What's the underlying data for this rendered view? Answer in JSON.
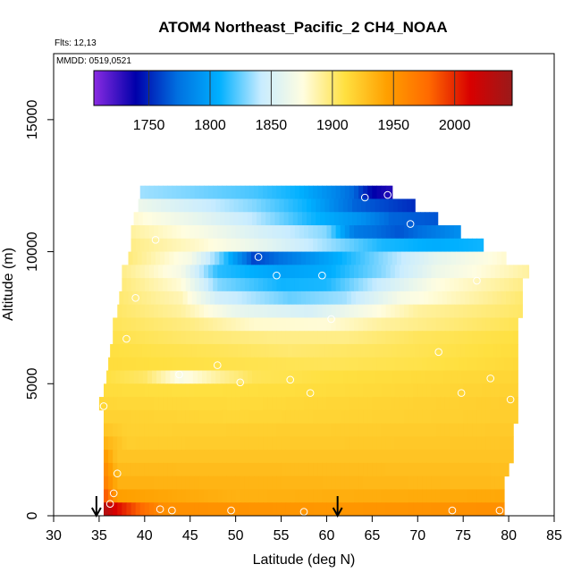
{
  "chart_data": {
    "type": "heatmap",
    "title": "ATOM4 Northeast_Pacific_2 CH4_NOAA",
    "flights_text": "Flts: 12,13",
    "mmdd_text": "MMDD: 0519,0521",
    "xlabel": "Latitude (deg N)",
    "ylabel": "Altitude (m)",
    "xlim": [
      30,
      85
    ],
    "ylim": [
      0,
      17500
    ],
    "x_ticks": [
      30,
      35,
      40,
      45,
      50,
      55,
      60,
      65,
      70,
      75,
      80,
      85
    ],
    "y_ticks": [
      0,
      5000,
      10000,
      15000
    ],
    "colorbar": {
      "range": [
        1705,
        2047
      ],
      "ticks": [
        1750,
        1800,
        1850,
        1900,
        1950,
        2000
      ],
      "colors": [
        "#8a2be2",
        "#0000aa",
        "#0070e0",
        "#00b0ff",
        "#c8ecff",
        "#fffde0",
        "#ffe040",
        "#ffa000",
        "#ff6a00",
        "#d80000",
        "#9a1a1a"
      ]
    },
    "rows": [
      {
        "y0": 12000,
        "y1": 12500,
        "x0": 39.5,
        "x1": 67.2,
        "k": [
          [
            39.5,
            1835
          ],
          [
            44,
            1830
          ],
          [
            52,
            1820
          ],
          [
            57,
            1808
          ],
          [
            61,
            1785
          ],
          [
            63,
            1770
          ],
          [
            65,
            1740
          ],
          [
            67.2,
            1730
          ]
        ]
      },
      {
        "y0": 11500,
        "y1": 12000,
        "x0": 39.3,
        "x1": 69.7,
        "k": [
          [
            39.3,
            1865
          ],
          [
            45,
            1848
          ],
          [
            52,
            1830
          ],
          [
            58,
            1808
          ],
          [
            63,
            1770
          ],
          [
            69.7,
            1752
          ]
        ]
      },
      {
        "y0": 11000,
        "y1": 11500,
        "x0": 38.8,
        "x1": 72.2,
        "k": [
          [
            38.8,
            1880
          ],
          [
            46,
            1860
          ],
          [
            52,
            1840
          ],
          [
            58,
            1812
          ],
          [
            64,
            1790
          ],
          [
            67,
            1770
          ],
          [
            72.2,
            1765
          ]
        ]
      },
      {
        "y0": 10500,
        "y1": 11000,
        "x0": 38.5,
        "x1": 74.7,
        "k": [
          [
            38.5,
            1890
          ],
          [
            46,
            1872
          ],
          [
            53,
            1850
          ],
          [
            60,
            1830
          ],
          [
            63,
            1780
          ],
          [
            68,
            1765
          ],
          [
            74.7,
            1790
          ]
        ]
      },
      {
        "y0": 10000,
        "y1": 10500,
        "x0": 38.5,
        "x1": 77.2,
        "k": [
          [
            38.5,
            1895
          ],
          [
            46,
            1880
          ],
          [
            53,
            1860
          ],
          [
            60,
            1835
          ],
          [
            66,
            1812
          ],
          [
            72,
            1806
          ],
          [
            77.2,
            1810
          ]
        ]
      },
      {
        "y0": 9500,
        "y1": 10000,
        "x0": 38.2,
        "x1": 79.7,
        "k": [
          [
            38.2,
            1898
          ],
          [
            45,
            1870
          ],
          [
            48,
            1830
          ],
          [
            52,
            1760
          ],
          [
            55,
            1775
          ],
          [
            60,
            1800
          ],
          [
            66,
            1830
          ],
          [
            72,
            1860
          ],
          [
            79.7,
            1880
          ]
        ]
      },
      {
        "y0": 9000,
        "y1": 9500,
        "x0": 37.5,
        "x1": 82.2,
        "k": [
          [
            37.5,
            1895
          ],
          [
            44,
            1870
          ],
          [
            48,
            1815
          ],
          [
            55,
            1800
          ],
          [
            60,
            1805
          ],
          [
            66,
            1830
          ],
          [
            72,
            1865
          ],
          [
            82.2,
            1890
          ]
        ]
      },
      {
        "y0": 8500,
        "y1": 9000,
        "x0": 37.5,
        "x1": 81.5,
        "k": [
          [
            37.5,
            1898
          ],
          [
            44,
            1878
          ],
          [
            48,
            1830
          ],
          [
            55,
            1810
          ],
          [
            60,
            1812
          ],
          [
            66,
            1845
          ],
          [
            72,
            1875
          ],
          [
            81.5,
            1895
          ]
        ]
      },
      {
        "y0": 8000,
        "y1": 8500,
        "x0": 37.2,
        "x1": 81.5,
        "k": [
          [
            37.2,
            1900
          ],
          [
            44,
            1885
          ],
          [
            48,
            1848
          ],
          [
            56,
            1825
          ],
          [
            62,
            1835
          ],
          [
            68,
            1870
          ],
          [
            81.5,
            1900
          ]
        ]
      },
      {
        "y0": 7500,
        "y1": 8000,
        "x0": 37,
        "x1": 81.5,
        "k": [
          [
            37,
            1902
          ],
          [
            44,
            1890
          ],
          [
            50,
            1862
          ],
          [
            58,
            1850
          ],
          [
            64,
            1870
          ],
          [
            70,
            1890
          ],
          [
            81.5,
            1902
          ]
        ]
      },
      {
        "y0": 7000,
        "y1": 7500,
        "x0": 36.5,
        "x1": 81,
        "k": [
          [
            36.5,
            1905
          ],
          [
            45,
            1896
          ],
          [
            52,
            1880
          ],
          [
            60,
            1878
          ],
          [
            66,
            1890
          ],
          [
            81,
            1906
          ]
        ]
      },
      {
        "y0": 6500,
        "y1": 7000,
        "x0": 36.5,
        "x1": 81,
        "k": [
          [
            36.5,
            1908
          ],
          [
            46,
            1900
          ],
          [
            54,
            1895
          ],
          [
            62,
            1895
          ],
          [
            70,
            1904
          ],
          [
            81,
            1910
          ]
        ]
      },
      {
        "y0": 6000,
        "y1": 6500,
        "x0": 36.2,
        "x1": 81,
        "k": [
          [
            36.2,
            1910
          ],
          [
            48,
            1905
          ],
          [
            56,
            1900
          ],
          [
            66,
            1904
          ],
          [
            81,
            1912
          ]
        ]
      },
      {
        "y0": 5500,
        "y1": 6000,
        "x0": 36,
        "x1": 81,
        "k": [
          [
            36,
            1912
          ],
          [
            48,
            1908
          ],
          [
            60,
            1905
          ],
          [
            70,
            1908
          ],
          [
            81,
            1914
          ]
        ]
      },
      {
        "y0": 5000,
        "y1": 5500,
        "x0": 35.8,
        "x1": 81,
        "k": [
          [
            35.8,
            1910
          ],
          [
            40,
            1902
          ],
          [
            44,
            1872
          ],
          [
            48,
            1890
          ],
          [
            52,
            1905
          ],
          [
            60,
            1910
          ],
          [
            81,
            1916
          ]
        ]
      },
      {
        "y0": 4500,
        "y1": 5000,
        "x0": 35.5,
        "x1": 81,
        "k": [
          [
            35.5,
            1912
          ],
          [
            45,
            1910
          ],
          [
            60,
            1912
          ],
          [
            81,
            1918
          ]
        ]
      },
      {
        "y0": 4000,
        "y1": 4500,
        "x0": 35,
        "x1": 81,
        "k": [
          [
            35,
            1915
          ],
          [
            50,
            1913
          ],
          [
            81,
            1920
          ]
        ]
      },
      {
        "y0": 3500,
        "y1": 4000,
        "x0": 35.5,
        "x1": 81,
        "k": [
          [
            35.5,
            1918
          ],
          [
            50,
            1915
          ],
          [
            81,
            1920
          ]
        ]
      },
      {
        "y0": 3000,
        "y1": 3500,
        "x0": 35.5,
        "x1": 80.5,
        "k": [
          [
            35.5,
            1925
          ],
          [
            38,
            1918
          ],
          [
            81,
            1922
          ]
        ]
      },
      {
        "y0": 2500,
        "y1": 3000,
        "x0": 35.5,
        "x1": 80.5,
        "k": [
          [
            35.5,
            1935
          ],
          [
            38,
            1920
          ],
          [
            81,
            1924
          ]
        ]
      },
      {
        "y0": 2000,
        "y1": 2500,
        "x0": 35.5,
        "x1": 80.5,
        "k": [
          [
            35.5,
            1950
          ],
          [
            37,
            1925
          ],
          [
            81,
            1925
          ]
        ]
      },
      {
        "y0": 1500,
        "y1": 2000,
        "x0": 35.5,
        "x1": 80,
        "k": [
          [
            35.5,
            1960
          ],
          [
            37,
            1930
          ],
          [
            80,
            1928
          ]
        ]
      },
      {
        "y0": 1000,
        "y1": 1500,
        "x0": 35.5,
        "x1": 79.5,
        "k": [
          [
            35.5,
            1968
          ],
          [
            37,
            1935
          ],
          [
            80,
            1930
          ]
        ]
      },
      {
        "y0": 500,
        "y1": 1000,
        "x0": 35.5,
        "x1": 79.5,
        "k": [
          [
            35.5,
            1990
          ],
          [
            37,
            1945
          ],
          [
            50,
            1935
          ],
          [
            79.5,
            1940
          ]
        ]
      },
      {
        "y0": 0,
        "y1": 500,
        "x0": 35.5,
        "x1": 79.5,
        "k": [
          [
            35.5,
            2035
          ],
          [
            37,
            2010
          ],
          [
            39,
            1985
          ],
          [
            42,
            1955
          ],
          [
            60,
            1950
          ],
          [
            79.5,
            1955
          ]
        ]
      }
    ],
    "sample_points": [
      [
        64.2,
        12050
      ],
      [
        66.7,
        12150
      ],
      [
        69.2,
        11050
      ],
      [
        52.5,
        9800
      ],
      [
        54.5,
        9100
      ],
      [
        59.5,
        9100
      ],
      [
        60.5,
        7450
      ],
      [
        76.5,
        8900
      ],
      [
        41.2,
        10450
      ],
      [
        39.0,
        8250
      ],
      [
        38.0,
        6700
      ],
      [
        48.0,
        5700
      ],
      [
        72.3,
        6200
      ],
      [
        78.0,
        5200
      ],
      [
        43.8,
        5350
      ],
      [
        50.5,
        5050
      ],
      [
        56.0,
        5150
      ],
      [
        58.2,
        4650
      ],
      [
        74.8,
        4650
      ],
      [
        80.2,
        4400
      ],
      [
        35.5,
        4150
      ],
      [
        37.0,
        1600
      ],
      [
        36.6,
        850
      ],
      [
        36.2,
        450
      ],
      [
        41.7,
        250
      ],
      [
        43.0,
        200
      ],
      [
        49.5,
        200
      ],
      [
        57.5,
        150
      ],
      [
        73.8,
        200
      ],
      [
        79.0,
        200
      ]
    ],
    "arrows": [
      34.7,
      61.2
    ]
  }
}
